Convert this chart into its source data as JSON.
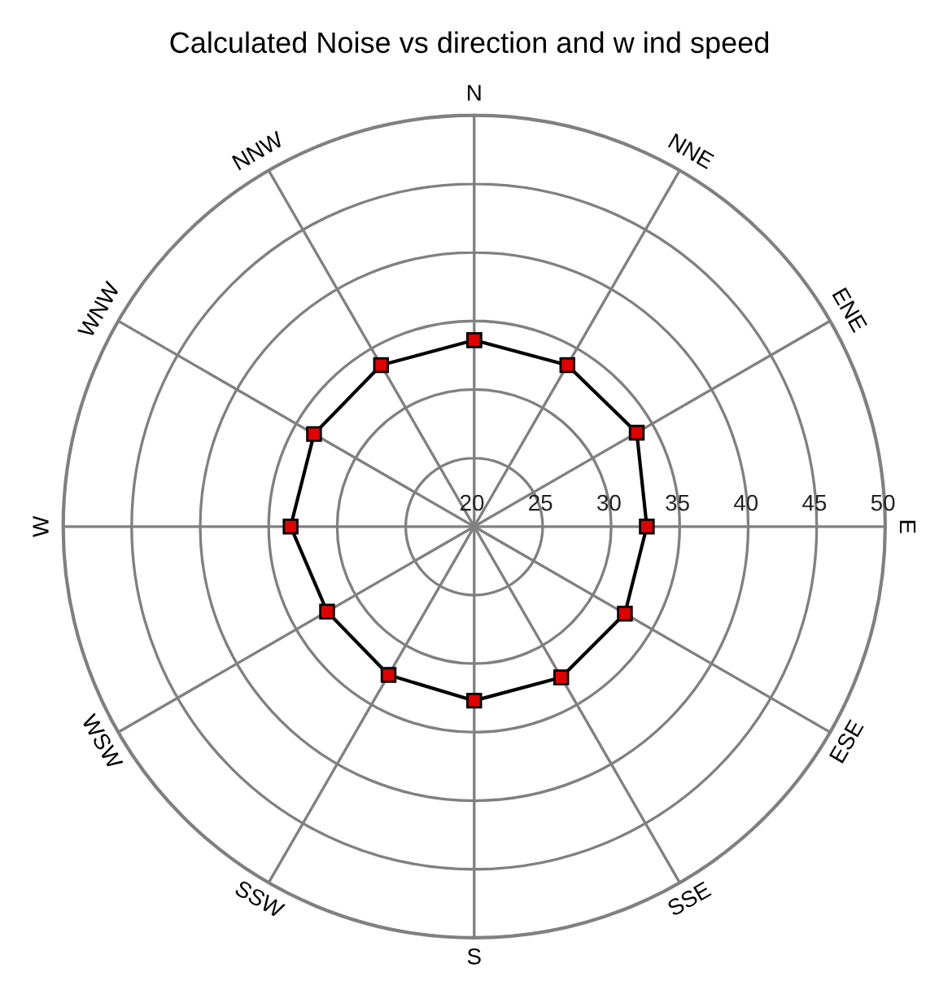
{
  "chart_data": {
    "type": "radar",
    "title": "Calculated Noise vs direction and w ind speed",
    "categories": [
      "N",
      "NNE",
      "ENE",
      "E",
      "ESE",
      "SSE",
      "S",
      "SSW",
      "WSW",
      "W",
      "WNW",
      "NNW"
    ],
    "series": [
      {
        "color": "#000000",
        "values": [
          33.6,
          33.6,
          33.7,
          32.6,
          32.7,
          32.7,
          32.7,
          32.5,
          32.4,
          33.4,
          33.5,
          33.6
        ]
      }
    ],
    "ylim": [
      20,
      50
    ],
    "yticks": [
      20,
      25,
      30,
      35,
      40,
      45,
      50
    ],
    "grid": true,
    "marker": "square",
    "line_style": "solid"
  }
}
